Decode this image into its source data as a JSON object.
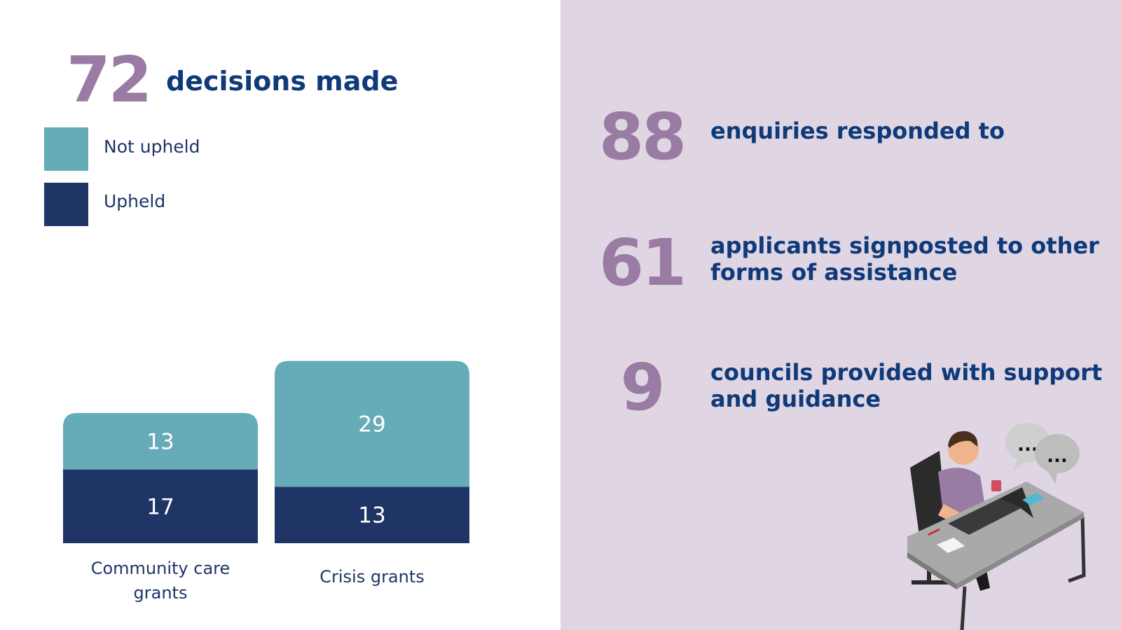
{
  "summary": {
    "number": "72",
    "label": "decisions made"
  },
  "legend": [
    {
      "label": "Not upheld",
      "color": "#66abb8"
    },
    {
      "label": "Upheld",
      "color": "#1f3566"
    }
  ],
  "chart_data": {
    "type": "bar",
    "stacked": true,
    "categories": [
      "Community care grants",
      "Crisis grants"
    ],
    "series": [
      {
        "name": "Upheld",
        "values": [
          17,
          13
        ],
        "color": "#1f3566"
      },
      {
        "name": "Not upheld",
        "values": [
          13,
          29
        ],
        "color": "#66abb8"
      }
    ],
    "legend_position": "top-left",
    "grid": false
  },
  "category_labels": [
    "Community care\ngrants",
    "Crisis grants"
  ],
  "stats": [
    {
      "number": "88",
      "text": "enquiries responded to"
    },
    {
      "number": "61",
      "text": "applicants signposted to other forms of assistance"
    },
    {
      "number": "9",
      "text": "councils provided with support and guidance"
    }
  ],
  "illustration": {
    "speech_bubble_1": "...",
    "speech_bubble_2": "..."
  },
  "colors": {
    "accent_purple": "#9a7ba3",
    "heading_blue": "#0f3a7a",
    "panel_bg": "#dfd5e3"
  }
}
